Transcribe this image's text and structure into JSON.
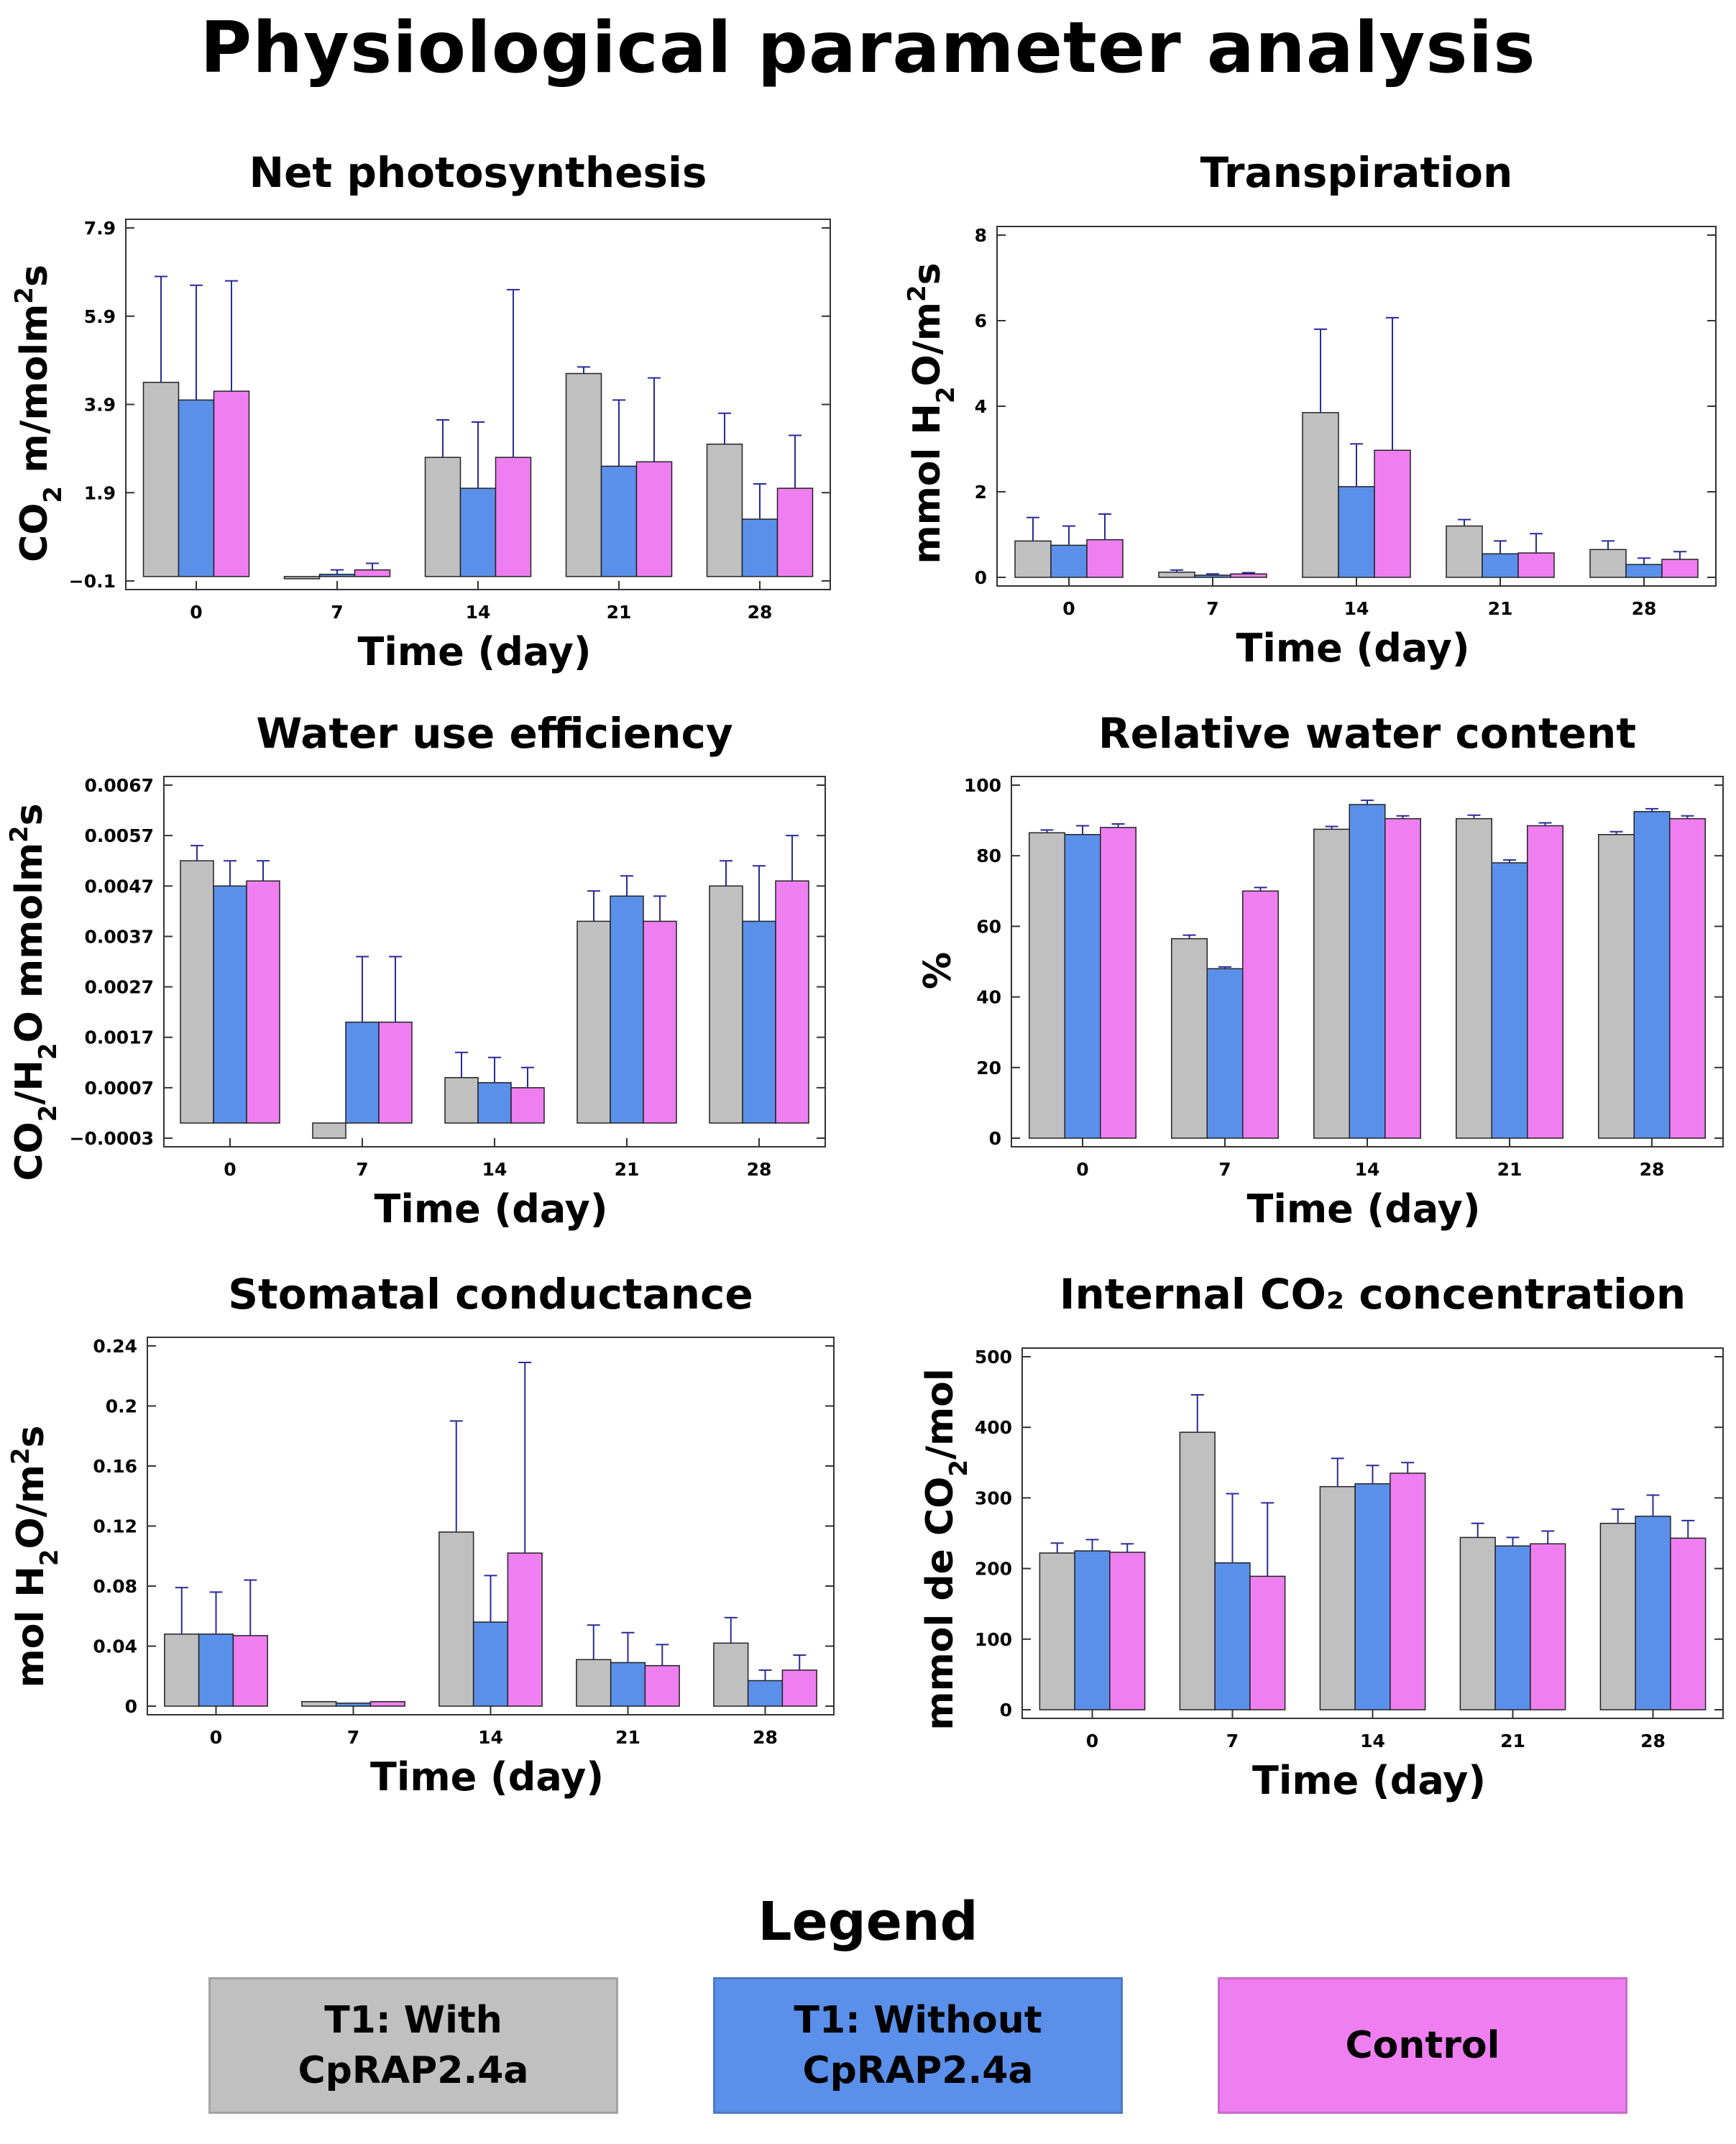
{
  "title": "Physiological parameter analysis",
  "colors": {
    "t1_with": "#c0c0c0",
    "t1_without": "#5b90ea",
    "control": "#ef7ff0",
    "error_bar": "#2a2a9a"
  },
  "legend": {
    "title": "Legend",
    "items": [
      {
        "line1": "T1: With",
        "line2": "CpRAP2.4a",
        "color": "#c0c0c0"
      },
      {
        "line1": "T1: Without",
        "line2": "CpRAP2.4a",
        "color": "#5b90ea"
      },
      {
        "line1": "Control",
        "line2": "",
        "color": "#ef7ff0"
      }
    ]
  },
  "chart_data": [
    {
      "id": "net-photosynthesis",
      "type": "bar",
      "title": "Net photosynthesis",
      "xlabel": "Time (day)",
      "ylabel": {
        "pre": "CO",
        "sub": "2",
        "mid": " m/molm",
        "sup": "2",
        "post": "s"
      },
      "categories": [
        "0",
        "7",
        "14",
        "21",
        "28"
      ],
      "ylim": [
        -0.1,
        7.9
      ],
      "yticks": [
        -0.1,
        1.9,
        3.9,
        5.9,
        7.9
      ],
      "ytick_labels": [
        "−0.1",
        "1.9",
        "3.9",
        "5.9",
        "7.9"
      ],
      "series": [
        {
          "name": "T1: With CpRAP2.4a",
          "values": [
            4.4,
            -0.05,
            2.7,
            4.6,
            3.0
          ],
          "errors": [
            2.4,
            0.0,
            0.85,
            0.15,
            0.7
          ]
        },
        {
          "name": "T1: Without CpRAP2.4a",
          "values": [
            4.0,
            0.05,
            2.0,
            2.5,
            1.3
          ],
          "errors": [
            2.6,
            0.1,
            1.5,
            1.5,
            0.8
          ]
        },
        {
          "name": "Control",
          "values": [
            4.2,
            0.15,
            2.7,
            2.6,
            2.0
          ],
          "errors": [
            2.5,
            0.15,
            3.8,
            1.9,
            1.2
          ]
        }
      ]
    },
    {
      "id": "transpiration",
      "type": "bar",
      "title": "Transpiration",
      "xlabel": "Time (day)",
      "ylabel": {
        "pre": "mmol H",
        "sub": "2",
        "mid": "O/m",
        "sup": "2",
        "post": "s"
      },
      "categories": [
        "0",
        "7",
        "14",
        "21",
        "28"
      ],
      "ylim": [
        0,
        8
      ],
      "yticks": [
        0,
        2,
        4,
        6,
        8
      ],
      "ytick_labels": [
        "0",
        "2",
        "4",
        "6",
        "8"
      ],
      "series": [
        {
          "name": "T1: With CpRAP2.4a",
          "values": [
            0.85,
            0.12,
            3.85,
            1.2,
            0.65
          ],
          "errors": [
            0.55,
            0.05,
            1.95,
            0.15,
            0.2
          ]
        },
        {
          "name": "T1: Without CpRAP2.4a",
          "values": [
            0.75,
            0.05,
            2.12,
            0.55,
            0.3
          ],
          "errors": [
            0.45,
            0.03,
            1.0,
            0.3,
            0.15
          ]
        },
        {
          "name": "Control",
          "values": [
            0.88,
            0.08,
            2.97,
            0.57,
            0.42
          ],
          "errors": [
            0.6,
            0.03,
            3.1,
            0.45,
            0.18
          ]
        }
      ]
    },
    {
      "id": "water-use-efficiency",
      "type": "bar",
      "title": "Water use efficiency",
      "xlabel": "Time (day)",
      "ylabel": {
        "pre": "CO",
        "sub": "2",
        "mid": "/H",
        "sub2": "2",
        "post": "O mmolm",
        "sup": "2",
        "post2": "s"
      },
      "categories": [
        "0",
        "7",
        "14",
        "21",
        "28"
      ],
      "ylim": [
        -0.0003,
        0.0067
      ],
      "yticks": [
        -0.0003,
        0.0007,
        0.0017,
        0.0027,
        0.0037,
        0.0047,
        0.0057,
        0.0067
      ],
      "ytick_labels": [
        "−0.0003",
        "0.0007",
        "0.0017",
        "0.0027",
        "0.0037",
        "0.0047",
        "0.0057",
        "0.0067"
      ],
      "series": [
        {
          "name": "T1: With CpRAP2.4a",
          "values": [
            0.0052,
            -0.0003,
            0.0009,
            0.004,
            0.0047
          ],
          "errors": [
            0.0003,
            0.0,
            0.0005,
            0.0006,
            0.0005
          ]
        },
        {
          "name": "T1: Without CpRAP2.4a",
          "values": [
            0.0047,
            0.002,
            0.0008,
            0.0045,
            0.004
          ],
          "errors": [
            0.0005,
            0.0013,
            0.0005,
            0.0004,
            0.0011
          ]
        },
        {
          "name": "Control",
          "values": [
            0.0048,
            0.002,
            0.0007,
            0.004,
            0.0048
          ],
          "errors": [
            0.0004,
            0.0013,
            0.0004,
            0.0005,
            0.0009
          ]
        }
      ]
    },
    {
      "id": "relative-water-content",
      "type": "bar",
      "title": "Relative water content",
      "xlabel": "Time (day)",
      "ylabel": {
        "pre": "%"
      },
      "categories": [
        "0",
        "7",
        "14",
        "21",
        "28"
      ],
      "ylim": [
        0,
        100
      ],
      "yticks": [
        0,
        20,
        40,
        60,
        80,
        100
      ],
      "ytick_labels": [
        "0",
        "20",
        "40",
        "60",
        "80",
        "100"
      ],
      "series": [
        {
          "name": "T1: With CpRAP2.4a",
          "values": [
            86.5,
            56.5,
            87.5,
            90.5,
            86
          ],
          "errors": [
            0.8,
            1.0,
            0.8,
            1.0,
            0.8
          ]
        },
        {
          "name": "T1: Without CpRAP2.4a",
          "values": [
            86,
            48,
            94.5,
            78,
            92.5
          ],
          "errors": [
            2.5,
            0.5,
            1.2,
            0.8,
            0.8
          ]
        },
        {
          "name": "Control",
          "values": [
            88,
            70,
            90.5,
            88.5,
            90.5
          ],
          "errors": [
            1.0,
            1.0,
            0.8,
            0.8,
            0.8
          ]
        }
      ]
    },
    {
      "id": "stomatal-conductance",
      "type": "bar",
      "title": "Stomatal conductance",
      "xlabel": "Time (day)",
      "ylabel": {
        "pre": "mol H",
        "sub": "2",
        "mid": "O/m",
        "sup": "2",
        "post": "s"
      },
      "categories": [
        "0",
        "7",
        "14",
        "21",
        "28"
      ],
      "ylim": [
        0,
        0.24
      ],
      "yticks": [
        0,
        0.04,
        0.08,
        0.12,
        0.16,
        0.2,
        0.24
      ],
      "ytick_labels": [
        "0",
        "0.04",
        "0.08",
        "0.12",
        "0.16",
        "0.2",
        "0.24"
      ],
      "series": [
        {
          "name": "T1: With CpRAP2.4a",
          "values": [
            0.048,
            0.003,
            0.116,
            0.031,
            0.042
          ],
          "errors": [
            0.031,
            0.0,
            0.074,
            0.023,
            0.017
          ]
        },
        {
          "name": "T1: Without CpRAP2.4a",
          "values": [
            0.048,
            0.002,
            0.056,
            0.029,
            0.017
          ],
          "errors": [
            0.028,
            0.0,
            0.031,
            0.02,
            0.007
          ]
        },
        {
          "name": "Control",
          "values": [
            0.047,
            0.003,
            0.102,
            0.027,
            0.024
          ],
          "errors": [
            0.037,
            0.0,
            0.127,
            0.014,
            0.01
          ]
        }
      ]
    },
    {
      "id": "internal-co2-concentration",
      "type": "bar",
      "title": "Internal CO₂ concentration",
      "xlabel": "Time (day)",
      "ylabel": {
        "pre": "mmol de CO",
        "sub": "2",
        "mid": "/mol"
      },
      "categories": [
        "0",
        "7",
        "14",
        "21",
        "28"
      ],
      "ylim": [
        0,
        500
      ],
      "yticks": [
        0,
        100,
        200,
        300,
        400,
        500
      ],
      "ytick_labels": [
        "0",
        "100",
        "200",
        "300",
        "400",
        "500"
      ],
      "series": [
        {
          "name": "T1: With CpRAP2.4a",
          "values": [
            222,
            393,
            316,
            244,
            264
          ],
          "errors": [
            14,
            53,
            40,
            20,
            20
          ]
        },
        {
          "name": "T1: Without CpRAP2.4a",
          "values": [
            225,
            208,
            320,
            232,
            274
          ],
          "errors": [
            16,
            98,
            26,
            12,
            30
          ]
        },
        {
          "name": "Control",
          "values": [
            223,
            189,
            335,
            235,
            243
          ],
          "errors": [
            12,
            104,
            15,
            18,
            25
          ]
        }
      ]
    }
  ]
}
